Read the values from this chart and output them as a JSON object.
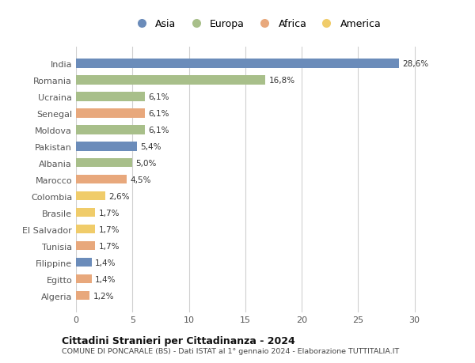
{
  "countries": [
    "India",
    "Romania",
    "Ucraina",
    "Senegal",
    "Moldova",
    "Pakistan",
    "Albania",
    "Marocco",
    "Colombia",
    "Brasile",
    "El Salvador",
    "Tunisia",
    "Filippine",
    "Egitto",
    "Algeria"
  ],
  "values": [
    28.6,
    16.8,
    6.1,
    6.1,
    6.1,
    5.4,
    5.0,
    4.5,
    2.6,
    1.7,
    1.7,
    1.7,
    1.4,
    1.4,
    1.2
  ],
  "labels": [
    "28,6%",
    "16,8%",
    "6,1%",
    "6,1%",
    "6,1%",
    "5,4%",
    "5,0%",
    "4,5%",
    "2,6%",
    "1,7%",
    "1,7%",
    "1,7%",
    "1,4%",
    "1,4%",
    "1,2%"
  ],
  "continents": [
    "Asia",
    "Europa",
    "Europa",
    "Africa",
    "Europa",
    "Asia",
    "Europa",
    "Africa",
    "America",
    "America",
    "America",
    "Africa",
    "Asia",
    "Africa",
    "Africa"
  ],
  "colors": {
    "Asia": "#6b8cba",
    "Europa": "#a8bf8a",
    "Africa": "#e8a87c",
    "America": "#f0cc6a"
  },
  "legend_order": [
    "Asia",
    "Europa",
    "Africa",
    "America"
  ],
  "title": "Cittadini Stranieri per Cittadinanza - 2024",
  "subtitle": "COMUNE DI PONCARALE (BS) - Dati ISTAT al 1° gennaio 2024 - Elaborazione TUTTITALIA.IT",
  "xlim": [
    0,
    32
  ],
  "xticks": [
    0,
    5,
    10,
    15,
    20,
    25,
    30
  ],
  "background_color": "#ffffff",
  "grid_color": "#d0d0d0"
}
